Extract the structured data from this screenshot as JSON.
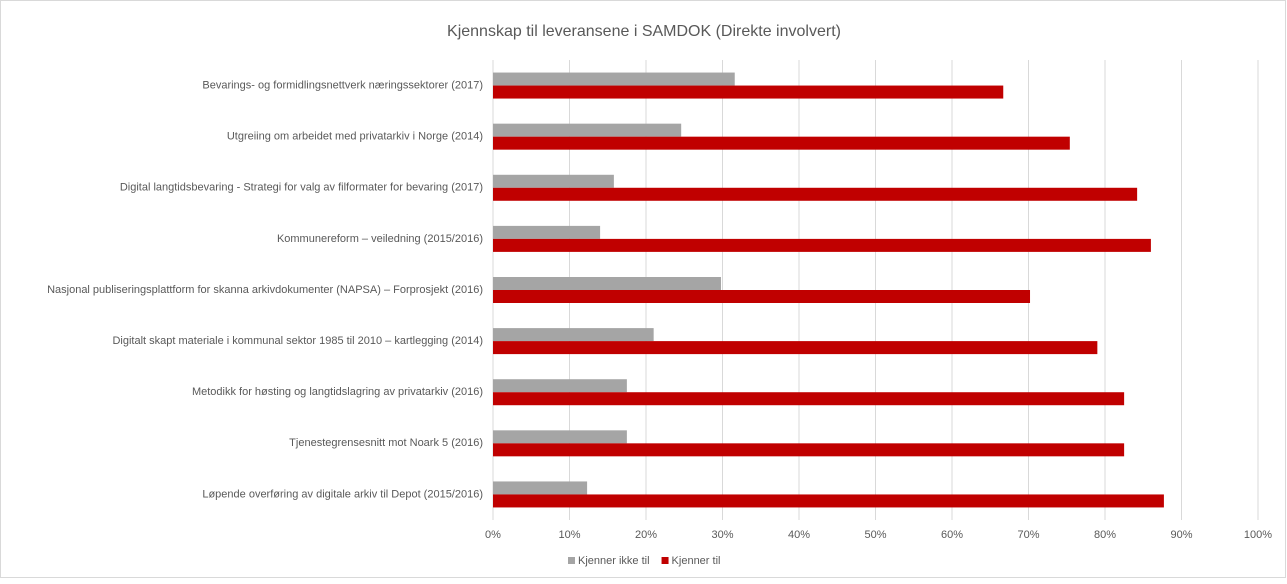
{
  "chart_data": {
    "type": "barh",
    "title": "Kjennskap til leveransene  i SAMDOK (Direkte involvert)",
    "categories": [
      "Bevarings- og formidlingsnettverk næringssektorer (2017)",
      "Utgreiing om arbeidet med privatarkiv i Norge (2014)",
      "Digital langtidsbevaring - Strategi for valg av filformater for bevaring (2017)",
      "Kommunereform – veiledning (2015/2016)",
      "Nasjonal publiseringsplattform for skanna arkivdokumenter (NAPSA) – Forprosjekt (2016)",
      "Digitalt skapt materiale i kommunal sektor 1985 til 2010 – kartlegging (2014)",
      "Metodikk for høsting og langtidslagring av privatarkiv (2016)",
      "Tjenestegrensesnitt mot Noark 5 (2016)",
      "Løpende overføring av digitale arkiv til Depot (2015/2016)"
    ],
    "series": [
      {
        "name": "Kjenner ikke til",
        "color": "#a5a5a5",
        "values": [
          31.6,
          24.6,
          15.8,
          14.0,
          29.8,
          21.0,
          17.5,
          17.5,
          12.3
        ]
      },
      {
        "name": "Kjenner til",
        "color": "#c00000",
        "values": [
          66.7,
          75.4,
          84.2,
          86.0,
          70.2,
          79.0,
          82.5,
          82.5,
          87.7
        ]
      }
    ],
    "xlim": [
      0,
      100
    ],
    "xticks": [
      {
        "value": 0,
        "label": "0%"
      },
      {
        "value": 10,
        "label": "10%"
      },
      {
        "value": 20,
        "label": "20%"
      },
      {
        "value": 30,
        "label": "30%"
      },
      {
        "value": 40,
        "label": "40%"
      },
      {
        "value": 50,
        "label": "50%"
      },
      {
        "value": 60,
        "label": "60%"
      },
      {
        "value": 70,
        "label": "70%"
      },
      {
        "value": 80,
        "label": "80%"
      },
      {
        "value": 90,
        "label": "90%"
      },
      {
        "value": 100,
        "label": "100%"
      }
    ],
    "grid": true,
    "legend": "bottom"
  }
}
